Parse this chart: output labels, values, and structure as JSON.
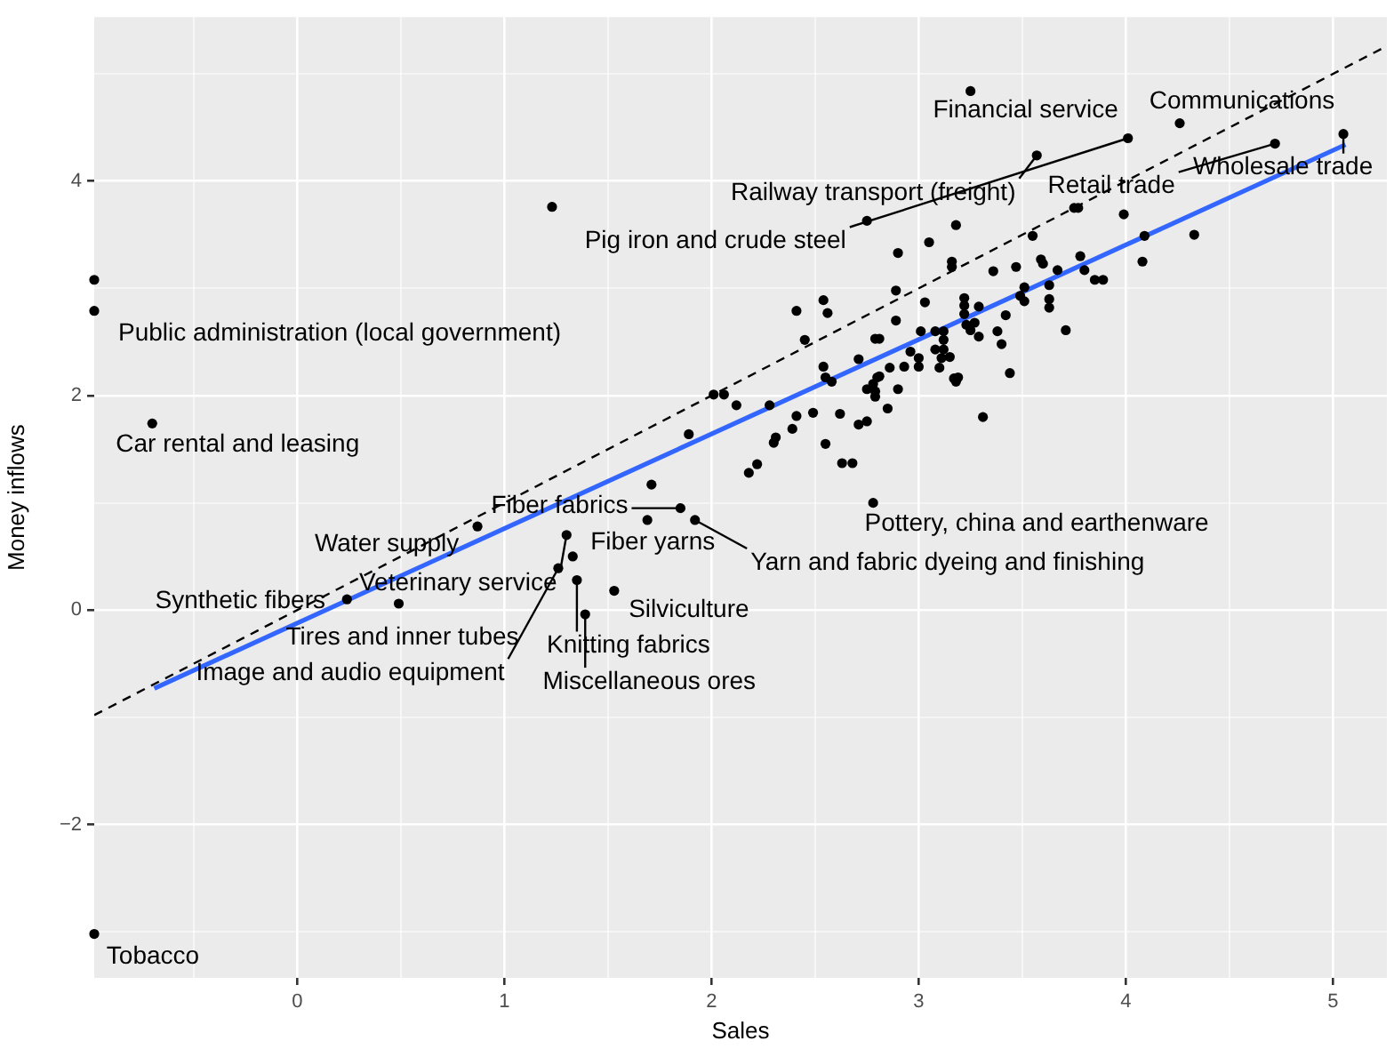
{
  "chart_data": {
    "type": "scatter",
    "xlabel": "Sales",
    "ylabel": "Money inflows",
    "xlim": [
      -0.98,
      5.26
    ],
    "ylim": [
      -3.43,
      5.53
    ],
    "xticks": [
      {
        "value": -0.5,
        "label": null
      },
      0,
      {
        "value": 0.5,
        "label": null
      },
      1,
      {
        "value": 1.5,
        "label": null
      },
      2,
      {
        "value": 2.5,
        "label": null
      },
      3,
      {
        "value": 3.5,
        "label": null
      },
      4,
      {
        "value": 4.5,
        "label": null
      },
      5
    ],
    "yticks": [
      {
        "value": -3,
        "label": null
      },
      {
        "value": -2,
        "label": "−2"
      },
      {
        "value": -1,
        "label": null
      },
      0,
      {
        "value": 1,
        "label": null
      },
      2,
      {
        "value": 3,
        "label": null
      },
      4,
      {
        "value": 5,
        "label": null
      }
    ],
    "grid": true,
    "legend": false,
    "series": [
      {
        "marker": "circle",
        "color": "#000000",
        "x": [
          3.25,
          4.26,
          4.01,
          3.57,
          4.72,
          5.05,
          1.23,
          -0.98,
          -0.98,
          -0.7,
          -0.98,
          2.75,
          3.18,
          3.05,
          2.9,
          3.55,
          3.75,
          3.77,
          3.99,
          4.09,
          4.33,
          4.08,
          3.16,
          3.16,
          3.36,
          3.47,
          3.59,
          3.6,
          3.67,
          3.78,
          3.8,
          3.85,
          3.89,
          3.51,
          3.51,
          3.49,
          3.63,
          3.63,
          3.63,
          3.71,
          3.42,
          3.38,
          3.4,
          3.44,
          3.31,
          3.29,
          3.22,
          3.22,
          3.22,
          3.23,
          3.25,
          3.27,
          3.29,
          3.03,
          3.01,
          3.08,
          3.12,
          3.12,
          3.08,
          3.12,
          3.15,
          3.11,
          3.1,
          3.17,
          3.19,
          3.18,
          3.0,
          3.0,
          2.93,
          2.96,
          2.9,
          2.86,
          2.89,
          2.89,
          2.79,
          2.81,
          2.71,
          2.8,
          2.81,
          2.78,
          2.79,
          2.79,
          2.75,
          2.85,
          2.54,
          2.56,
          2.41,
          2.45,
          2.54,
          2.55,
          2.58,
          2.71,
          2.75,
          2.62,
          2.49,
          2.55,
          2.63,
          2.68,
          2.41,
          2.39,
          2.31,
          2.3,
          2.28,
          2.22,
          2.18,
          2.12,
          2.06,
          2.01,
          1.89,
          2.78,
          1.85,
          1.92,
          1.71,
          1.69,
          0.87,
          1.3,
          1.33,
          1.26,
          1.35,
          1.53,
          1.39,
          0.49,
          0.24
        ],
        "values": [
          4.84,
          4.54,
          4.4,
          4.24,
          4.35,
          4.44,
          3.76,
          3.08,
          2.79,
          1.74,
          -3.02,
          3.63,
          3.59,
          3.43,
          3.33,
          3.49,
          3.75,
          3.75,
          3.69,
          3.49,
          3.5,
          3.25,
          3.25,
          3.2,
          3.16,
          3.2,
          3.27,
          3.23,
          3.17,
          3.3,
          3.17,
          3.08,
          3.08,
          3.01,
          2.88,
          2.93,
          3.03,
          2.9,
          2.82,
          2.61,
          2.75,
          2.6,
          2.48,
          2.21,
          1.8,
          2.83,
          2.91,
          2.84,
          2.76,
          2.66,
          2.61,
          2.68,
          2.55,
          2.87,
          2.6,
          2.6,
          2.6,
          2.52,
          2.43,
          2.43,
          2.36,
          2.35,
          2.26,
          2.16,
          2.17,
          2.13,
          2.35,
          2.27,
          2.27,
          2.41,
          2.06,
          2.26,
          2.7,
          2.98,
          2.53,
          2.53,
          2.34,
          2.17,
          2.18,
          2.11,
          2.04,
          1.99,
          2.06,
          1.88,
          2.89,
          2.77,
          2.79,
          2.52,
          2.27,
          2.17,
          2.13,
          1.73,
          1.76,
          1.83,
          1.84,
          1.55,
          1.37,
          1.37,
          1.81,
          1.69,
          1.61,
          1.56,
          1.91,
          1.36,
          1.28,
          1.91,
          2.01,
          2.01,
          1.64,
          1.0,
          0.95,
          0.84,
          1.17,
          0.84,
          0.78,
          0.7,
          0.5,
          0.39,
          0.28,
          0.18,
          -0.04,
          0.06,
          0.1
        ]
      },
      {
        "type": "line",
        "marker": "none",
        "color": "#000000",
        "line_style": "dashed",
        "x": [
          -0.98,
          5.26
        ],
        "values": [
          -0.98,
          5.26
        ]
      },
      {
        "type": "line",
        "marker": "none",
        "color": "#3366ff",
        "line_style": "solid",
        "x": [
          -0.69,
          5.06
        ],
        "values": [
          -0.73,
          4.34
        ]
      }
    ],
    "annotations": [
      {
        "text": "Financial service",
        "x": 3.25,
        "y": 4.84
      },
      {
        "text": "Communications",
        "x": 4.26,
        "y": 4.54
      },
      {
        "text": "Railway transport (freight)",
        "x": 3.57,
        "y": 4.24
      },
      {
        "text": "Retail trade",
        "x": 4.72,
        "y": 4.35
      },
      {
        "text": "Wholesale trade",
        "x": 5.05,
        "y": 4.44
      },
      {
        "text": "Pig iron and crude steel",
        "x": 4.01,
        "y": 4.4
      },
      {
        "text": "Public administration (local government)",
        "x": -0.98,
        "y": 2.79
      },
      {
        "text": "Car rental and leasing",
        "x": -0.7,
        "y": 1.74
      },
      {
        "text": "Tobacco",
        "x": -0.98,
        "y": -3.02
      },
      {
        "text": "Fiber fabrics",
        "x": 1.85,
        "y": 0.95
      },
      {
        "text": "Fiber yarns",
        "x": 1.33,
        "y": 0.5
      },
      {
        "text": "Water supply",
        "x": 0.87,
        "y": 0.78
      },
      {
        "text": "Veterinary service",
        "x": 1.3,
        "y": 0.7
      },
      {
        "text": "Synthetic fibers",
        "x": 0.24,
        "y": 0.1
      },
      {
        "text": "Yarn and fabric dyeing and finishing",
        "x": 1.92,
        "y": 0.84
      },
      {
        "text": "Pottery, china and earthenware",
        "x": 2.78,
        "y": 1.0
      },
      {
        "text": "Silviculture",
        "x": 1.53,
        "y": 0.18
      },
      {
        "text": "Tires and inner tubes",
        "x": 0.49,
        "y": 0.06
      },
      {
        "text": "Knitting fabrics",
        "x": 1.35,
        "y": 0.28
      },
      {
        "text": "Image and audio equipment",
        "x": 1.26,
        "y": 0.39
      },
      {
        "text": "Miscellaneous ores",
        "x": 1.39,
        "y": -0.04
      }
    ]
  }
}
